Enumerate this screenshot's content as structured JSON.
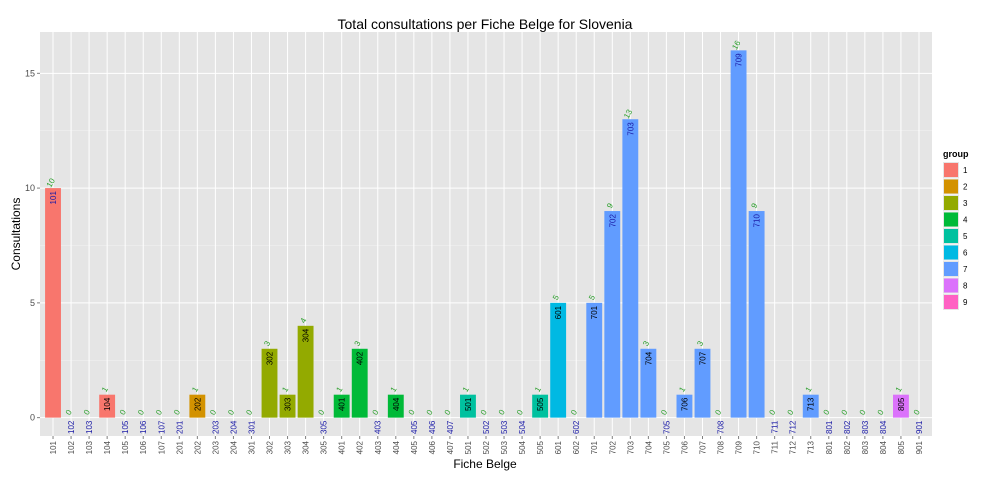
{
  "chart_data": {
    "type": "bar",
    "title": "Total consultations per Fiche Belge for Slovenia",
    "xlabel": "Fiche Belge",
    "ylabel": "Consultations",
    "ylim": [
      -0.8,
      16.8
    ],
    "yticks": [
      0,
      5,
      10,
      15
    ],
    "grid": true,
    "legend": {
      "title": "group",
      "position": "right",
      "entries": [
        "1",
        "2",
        "3",
        "4",
        "5",
        "6",
        "7",
        "8",
        "9"
      ]
    },
    "group_colors": {
      "1": "#F8766D",
      "2": "#D39200",
      "3": "#93AA00",
      "4": "#00BA38",
      "5": "#00C19F",
      "6": "#00B9E3",
      "7": "#619CFF",
      "8": "#DB72FB",
      "9": "#FF61C3"
    },
    "count_label_color": "#2ca02c",
    "code_label_color": "#1a1aa6",
    "categories": [
      "101",
      "102",
      "103",
      "104",
      "105",
      "106",
      "107",
      "201",
      "202",
      "203",
      "204",
      "301",
      "302",
      "303",
      "304",
      "305",
      "401",
      "402",
      "403",
      "404",
      "405",
      "406",
      "407",
      "501",
      "502",
      "503",
      "504",
      "505",
      "601",
      "602",
      "701",
      "702",
      "703",
      "704",
      "705",
      "706",
      "707",
      "708",
      "709",
      "710",
      "711",
      "712",
      "713",
      "801",
      "802",
      "803",
      "804",
      "805",
      "901"
    ],
    "values": [
      10,
      0,
      0,
      1,
      0,
      0,
      0,
      0,
      1,
      0,
      0,
      0,
      3,
      1,
      4,
      0,
      1,
      3,
      0,
      1,
      0,
      0,
      0,
      1,
      0,
      0,
      0,
      1,
      5,
      0,
      5,
      9,
      13,
      3,
      0,
      1,
      3,
      0,
      16,
      9,
      0,
      0,
      1,
      0,
      0,
      0,
      0,
      1,
      0
    ],
    "groups": [
      "1",
      "1",
      "1",
      "1",
      "1",
      "1",
      "1",
      "2",
      "2",
      "2",
      "2",
      "3",
      "3",
      "3",
      "3",
      "3",
      "4",
      "4",
      "4",
      "4",
      "4",
      "4",
      "4",
      "5",
      "5",
      "5",
      "5",
      "5",
      "6",
      "6",
      "7",
      "7",
      "7",
      "7",
      "7",
      "7",
      "7",
      "7",
      "7",
      "7",
      "7",
      "7",
      "7",
      "8",
      "8",
      "8",
      "8",
      "8",
      "9"
    ]
  }
}
